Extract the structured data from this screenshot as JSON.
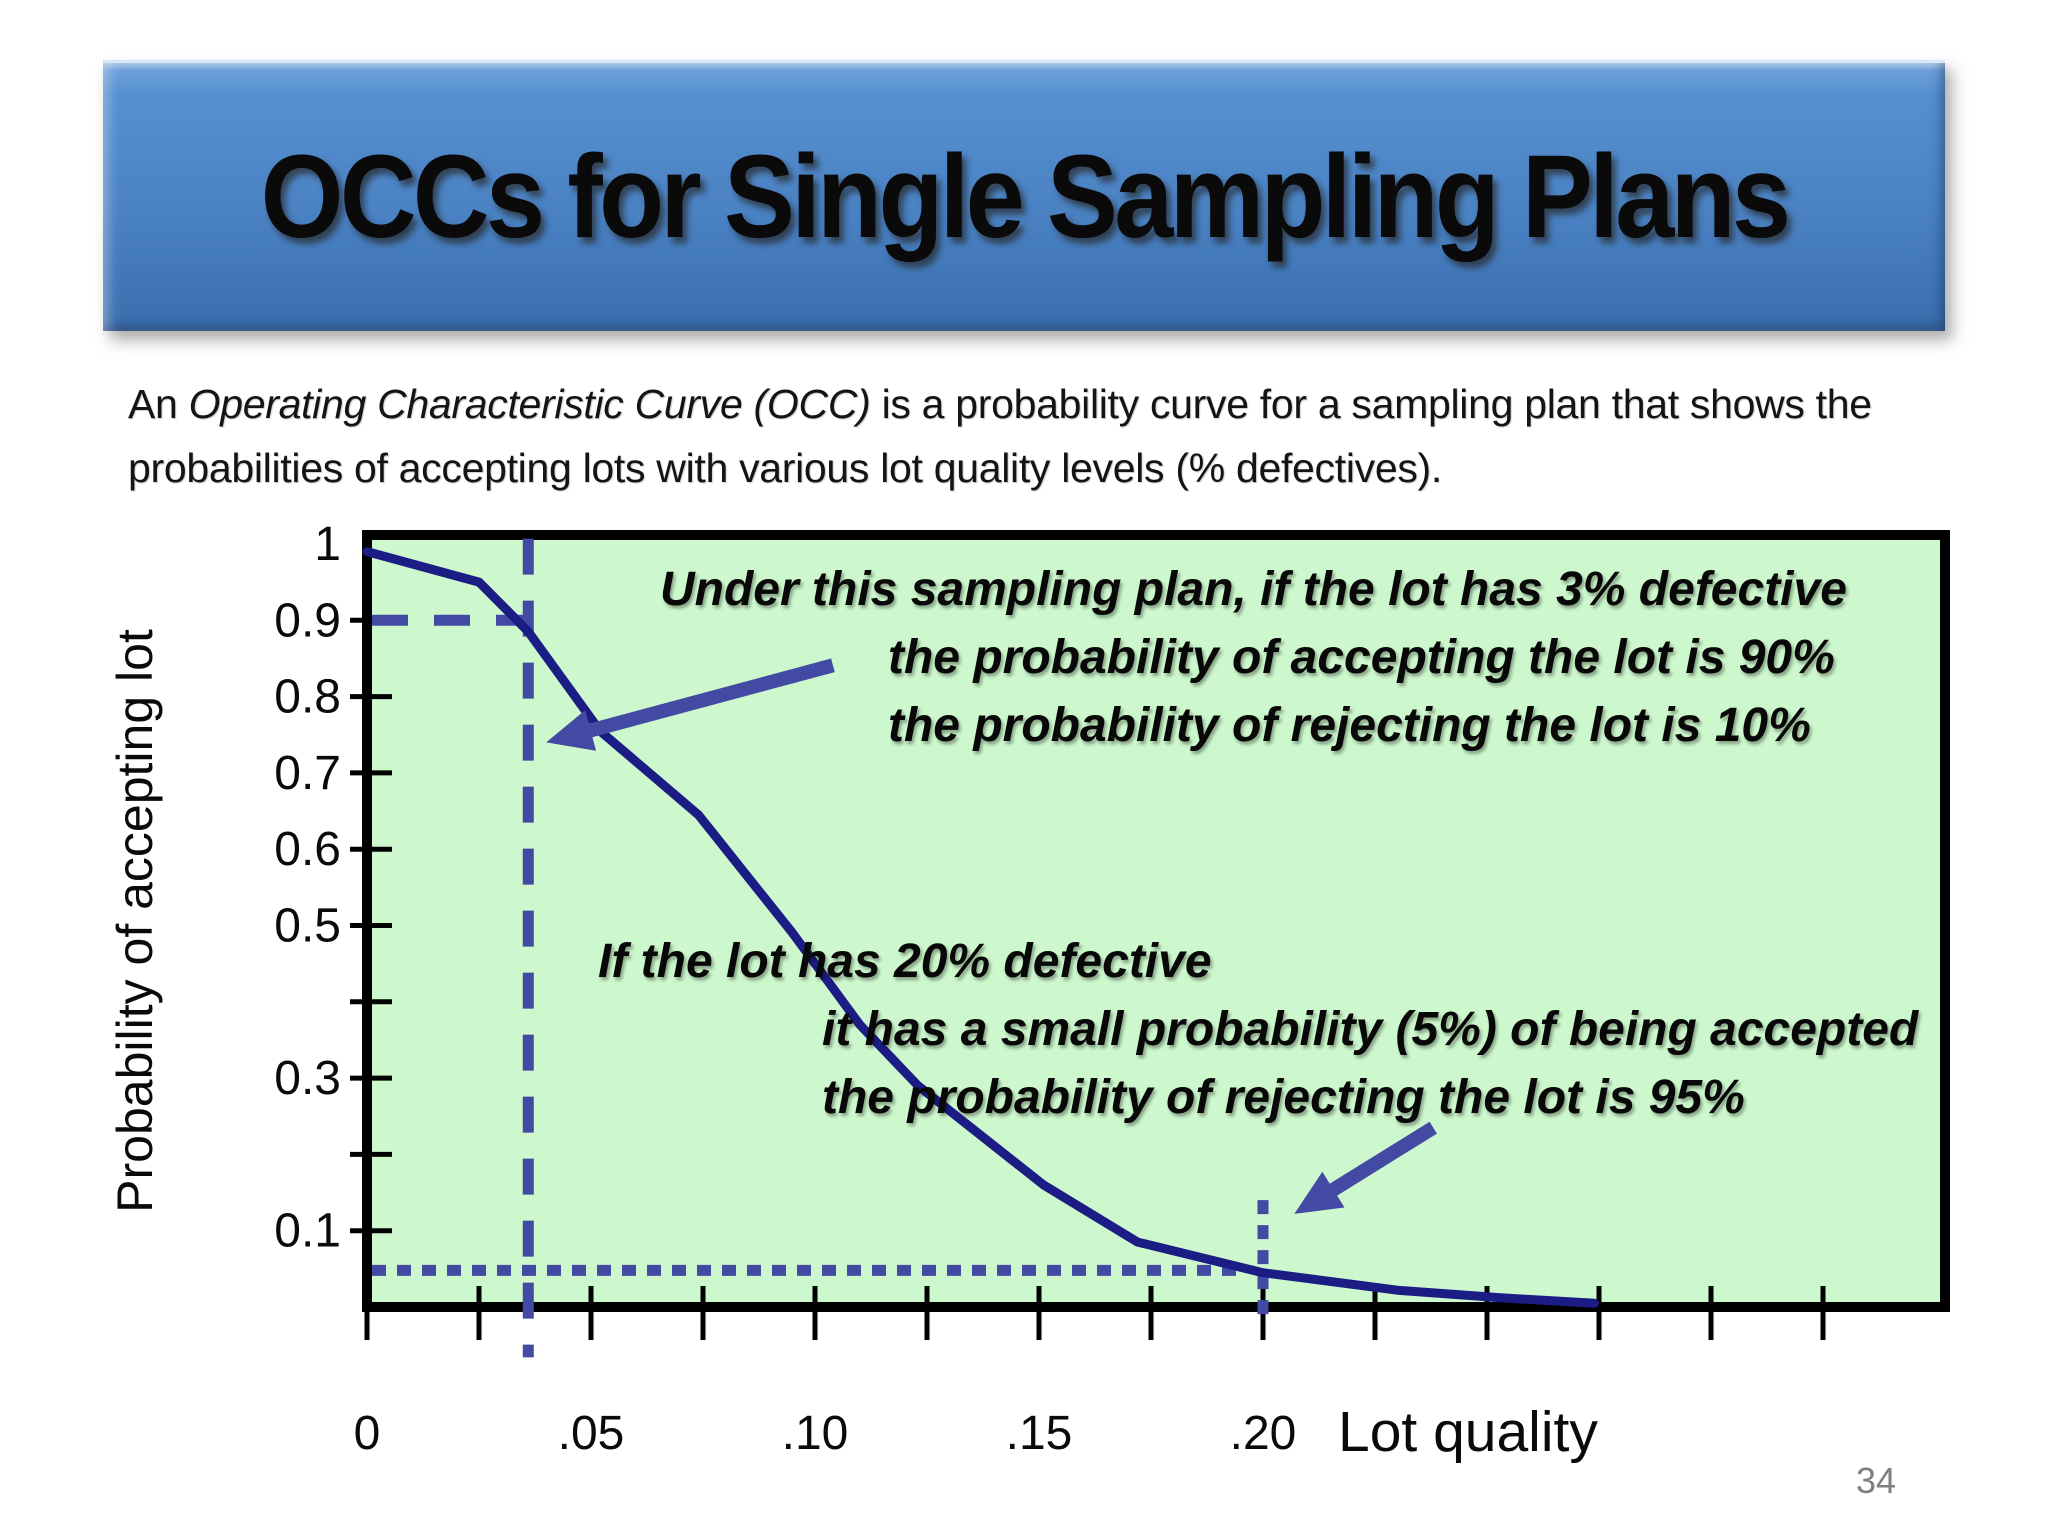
{
  "title": "OCCs for Single Sampling Plans",
  "intro": {
    "prefix": "An ",
    "italic": "Operating Characteristic Curve (OCC)",
    "rest": " is a probability curve for a sampling plan that shows the probabilities of accepting lots with various lot quality levels (% defectives)."
  },
  "callouts": {
    "c1": {
      "line1": "Under this sampling plan, if the lot has 3% defective",
      "line2": "the probability of accepting the lot is 90%",
      "line3": "the probability of rejecting the lot is 10%"
    },
    "c2": {
      "line1": "If the lot has 20% defective",
      "line2": "it has a small probability (5%) of being accepted",
      "line3": "the probability of rejecting the lot is 95%"
    }
  },
  "page_number": "34",
  "chart_data": {
    "type": "line",
    "title": "",
    "xlabel": "Lot quality",
    "ylabel": "Probability of accepting lot",
    "xlim": [
      0,
      0.345
    ],
    "ylim": [
      0,
      1.0
    ],
    "grid": false,
    "x_tick_step": 0.025,
    "x_tick_count": 14,
    "x_tick_labels": [
      {
        "value": 0,
        "label": "0"
      },
      {
        "value": 0.05,
        "label": ".05"
      },
      {
        "value": 0.1,
        "label": ".10"
      },
      {
        "value": 0.15,
        "label": ".15"
      },
      {
        "value": 0.2,
        "label": ".20"
      }
    ],
    "y_tick_step": 0.1,
    "y_tick_labels": [
      {
        "value": 1.0,
        "label": "1"
      },
      {
        "value": 0.9,
        "label": "0.9"
      },
      {
        "value": 0.8,
        "label": "0.8"
      },
      {
        "value": 0.7,
        "label": "0.7"
      },
      {
        "value": 0.6,
        "label": "0.6"
      },
      {
        "value": 0.5,
        "label": "0.5"
      },
      {
        "value": 0.3,
        "label": "0.3"
      },
      {
        "value": 0.1,
        "label": "0.1"
      }
    ],
    "series": [
      {
        "name": "OC curve",
        "color": "#1c1c85",
        "points": [
          [
            0.0,
            0.99
          ],
          [
            0.025,
            0.95
          ],
          [
            0.036,
            0.885
          ],
          [
            0.052,
            0.755
          ],
          [
            0.074,
            0.645
          ],
          [
            0.095,
            0.49
          ],
          [
            0.11,
            0.37
          ],
          [
            0.123,
            0.29
          ],
          [
            0.151,
            0.16
          ],
          [
            0.172,
            0.085
          ],
          [
            0.2,
            0.045
          ],
          [
            0.23,
            0.022
          ],
          [
            0.253,
            0.012
          ],
          [
            0.274,
            0.005
          ]
        ]
      }
    ],
    "reference_lines": [
      {
        "name": "accept-90pct-horizontal",
        "style": "dashed",
        "y": 0.9,
        "x_from": 0,
        "x_to": 0.0365
      },
      {
        "name": "defect-3pct-vertical",
        "style": "dashed",
        "x": 0.036,
        "y_from": 1.007,
        "y_to": -0.066
      },
      {
        "name": "accept-5pct-horizontal",
        "style": "dotted",
        "y": 0.048,
        "x_from": 0,
        "x_to": 0.196
      },
      {
        "name": "defect-20pct-vertical",
        "style": "dotted",
        "x": 0.2,
        "y_from": 0.14,
        "y_to": -0.015
      }
    ],
    "arrows": [
      {
        "name": "arrow-to-3pct-intersection",
        "from": [
          0.104,
          0.841
        ],
        "to": [
          0.04,
          0.74
        ]
      },
      {
        "name": "arrow-to-20pct-intersection",
        "from": [
          0.238,
          0.235
        ],
        "to": [
          0.207,
          0.122
        ]
      }
    ],
    "colors": {
      "plot_bg": "#cdf8cd",
      "axis": "#000000",
      "curve": "#1c1c85",
      "guide": "#434aa3"
    }
  }
}
